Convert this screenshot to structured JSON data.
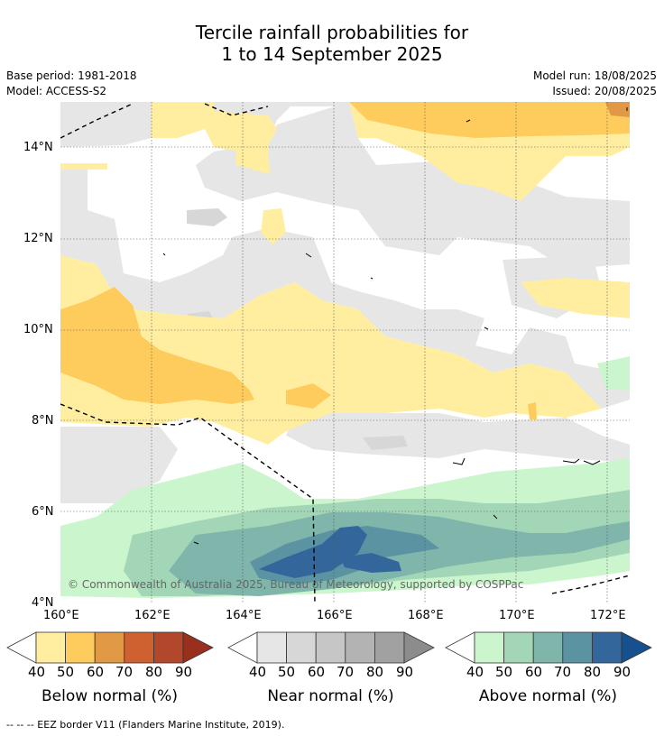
{
  "title": {
    "line1": "Tercile rainfall probabilities for",
    "line2": "1 to 14 September 2025"
  },
  "meta": {
    "base_period": "Base period: 1981-2018",
    "model": "Model: ACCESS-S2",
    "model_run": "Model run: 18/08/2025",
    "issued": "Issued: 20/08/2025"
  },
  "map": {
    "lat_ticks": [
      "14°N",
      "12°N",
      "10°N",
      "8°N",
      "6°N",
      "4°N"
    ],
    "lon_ticks": [
      "160°E",
      "162°E",
      "164°E",
      "166°E",
      "168°E",
      "170°E",
      "172°E"
    ],
    "copyright": "© Commonwealth of Australia 2025, Bureau of Meteorology, supported by COSPPac"
  },
  "colorbars": [
    {
      "label": "Below normal (%)",
      "ticks": [
        "40",
        "50",
        "60",
        "70",
        "80",
        "90"
      ],
      "colors": [
        "#ffeda0",
        "#fecc5c",
        "#e29945",
        "#cf6130",
        "#b3472c",
        "#99301d"
      ]
    },
    {
      "label": "Near normal (%)",
      "ticks": [
        "40",
        "50",
        "60",
        "70",
        "80",
        "90"
      ],
      "colors": [
        "#e6e6e6",
        "#d7d7d7",
        "#c6c6c6",
        "#b3b3b3",
        "#a1a1a1",
        "#8c8c8c"
      ]
    },
    {
      "label": "Above normal (%)",
      "ticks": [
        "40",
        "50",
        "60",
        "70",
        "80",
        "90"
      ],
      "colors": [
        "#cbf5cc",
        "#a3d6b7",
        "#7fb5ab",
        "#5b93a3",
        "#33679b",
        "#17508f"
      ]
    }
  ],
  "legend_footer": "--  --  -- EEZ border V11 (Flanders Marine Institute, 2019)."
}
